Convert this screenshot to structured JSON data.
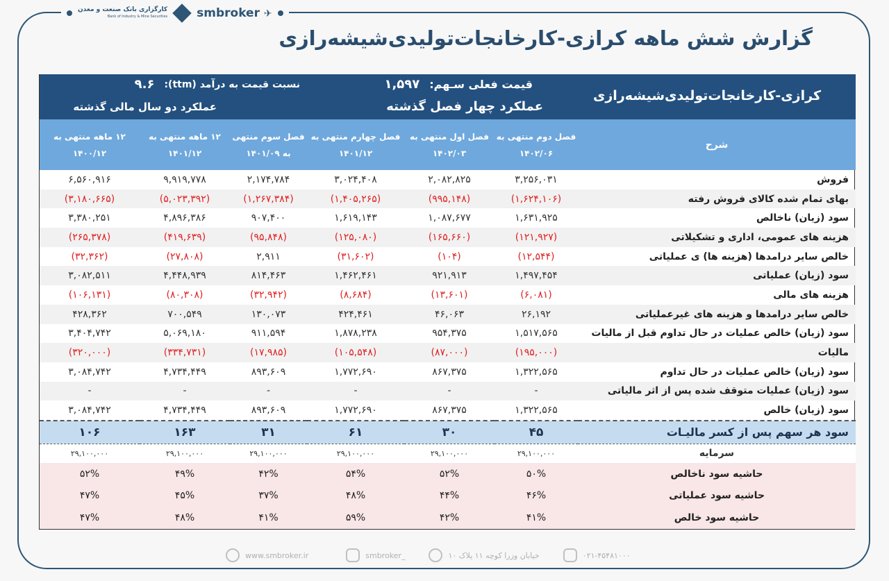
{
  "header": {
    "brand": "smbroker",
    "logo_text_fa": "کارگزاری بانک صنعت و معدن",
    "logo_text_en": "Bank of Industry & Mine Securities",
    "title": "گزارش شش ماهه کرازی-کارخانجات‌تولیدی‌شیشه‌رازی"
  },
  "summary": {
    "company": "کرازی-کارخانجات‌تولیدی‌شیشه‌رازی",
    "price_label": "قیمت فعلی سـهم:",
    "price": "۱,۵۹۷",
    "pe_label": "نسبت  قیمت به درآمد (ttm):",
    "pe": "۹.۶",
    "four_quarters": "عملکرد چهار فصل گذشته",
    "two_years": "عملکرد دو سال مالی گذشته"
  },
  "columns": {
    "desc": "شرح",
    "periods": [
      {
        "l1": "فصل دوم منتهی به",
        "l2": "۱۴۰۲/۰۶"
      },
      {
        "l1": "فصل اول منتهی به",
        "l2": "۱۴۰۲/۰۳"
      },
      {
        "l1": "فصل چهارم منتهی به",
        "l2": "۱۴۰۱/۱۲"
      },
      {
        "l1": "فصل سوم منتهی",
        "l2": "به ۱۴۰۱/۰۹"
      },
      {
        "l1": "۱۲ ماهه منتهی به",
        "l2": "۱۴۰۱/۱۲"
      },
      {
        "l1": "۱۲ ماهه منتهی به",
        "l2": "۱۴۰۰/۱۲"
      }
    ]
  },
  "rows": [
    {
      "label": "فروش",
      "values": [
        "۳,۲۵۶,۰۳۱",
        "۲,۰۸۲,۸۲۵",
        "۳,۰۲۴,۴۰۸",
        "۲,۱۷۴,۷۸۴",
        "۹,۹۱۹,۷۷۸",
        "۶,۵۶۰,۹۱۶"
      ]
    },
    {
      "label": "بهای تمام شده کالای فروش رفته",
      "values": [
        "(۱,۶۲۴,۱۰۶)",
        "(۹۹۵,۱۴۸)",
        "(۱,۴۰۵,۲۶۵)",
        "(۱,۲۶۷,۳۸۴)",
        "(۵,۰۲۳,۳۹۲)",
        "(۳,۱۸۰,۶۶۵)"
      ]
    },
    {
      "label": "سود (زیان) ناخالص",
      "values": [
        "۱,۶۳۱,۹۲۵",
        "۱,۰۸۷,۶۷۷",
        "۱,۶۱۹,۱۴۳",
        "۹۰۷,۴۰۰",
        "۴,۸۹۶,۳۸۶",
        "۳,۳۸۰,۲۵۱"
      ]
    },
    {
      "label": "هزینه های عمومی، اداری و تشکیلاتی",
      "values": [
        "(۱۲۱,۹۲۷)",
        "(۱۶۵,۶۶۰)",
        "(۱۲۵,۰۸۰)",
        "(۹۵,۸۴۸)",
        "(۴۱۹,۶۳۹)",
        "(۲۶۵,۳۷۸)"
      ]
    },
    {
      "label": "خالص سایر درامدها (هزینه ها) ی عملیاتی",
      "values": [
        "(۱۲,۵۴۴)",
        "(۱۰۴)",
        "(۳۱,۶۰۲)",
        "۲,۹۱۱",
        "(۲۷,۸۰۸)",
        "(۳۲,۳۶۲)"
      ]
    },
    {
      "label": "سود (زیان) عملیاتی",
      "values": [
        "۱,۴۹۷,۴۵۴",
        "۹۲۱,۹۱۳",
        "۱,۴۶۲,۴۶۱",
        "۸۱۴,۴۶۳",
        "۴,۴۴۸,۹۳۹",
        "۳,۰۸۲,۵۱۱"
      ]
    },
    {
      "label": "هزینه های مالی",
      "values": [
        "(۶,۰۸۱)",
        "(۱۳,۶۰۱)",
        "(۸,۶۸۴)",
        "(۳۲,۹۴۲)",
        "(۸۰,۳۰۸)",
        "(۱۰۶,۱۳۱)"
      ]
    },
    {
      "label": "خالص سایر درامدها و هزینه های غیرعملیاتی",
      "values": [
        "۲۶,۱۹۲",
        "۴۶,۰۶۳",
        "۴۲۴,۴۶۱",
        "۱۳۰,۰۷۳",
        "۷۰۰,۵۴۹",
        "۴۲۸,۳۶۲"
      ]
    },
    {
      "label": "سود (زیان) خالص عملیات در حال تداوم قبل از مالیات",
      "values": [
        "۱,۵۱۷,۵۶۵",
        "۹۵۴,۳۷۵",
        "۱,۸۷۸,۲۳۸",
        "۹۱۱,۵۹۴",
        "۵,۰۶۹,۱۸۰",
        "۳,۴۰۴,۷۴۲"
      ]
    },
    {
      "label": "مالیات",
      "values": [
        "(۱۹۵,۰۰۰)",
        "(۸۷,۰۰۰)",
        "(۱۰۵,۵۴۸)",
        "(۱۷,۹۸۵)",
        "(۳۳۴,۷۳۱)",
        "(۳۲۰,۰۰۰)"
      ]
    },
    {
      "label": "سود (زیان) خالص عملیات در حال تداوم",
      "values": [
        "۱,۳۲۲,۵۶۵",
        "۸۶۷,۳۷۵",
        "۱,۷۷۲,۶۹۰",
        "۸۹۳,۶۰۹",
        "۴,۷۳۴,۴۴۹",
        "۳,۰۸۴,۷۴۲"
      ]
    },
    {
      "label": "سود (زیان) عملیات متوقف شده پس از اثر مالیاتی",
      "values": [
        "-",
        "-",
        "-",
        "-",
        "-",
        "-"
      ]
    },
    {
      "label": "سود (زیان) خالص",
      "values": [
        "۱,۳۲۲,۵۶۵",
        "۸۶۷,۳۷۵",
        "۱,۷۷۲,۶۹۰",
        "۸۹۳,۶۰۹",
        "۴,۷۳۴,۴۴۹",
        "۳,۰۸۴,۷۴۲"
      ]
    }
  ],
  "eps": {
    "label": "سود هر سهم پس از کسر مالیـات",
    "values": [
      "۴۵",
      "۳۰",
      "۶۱",
      "۳۱",
      "۱۶۳",
      "۱۰۶"
    ]
  },
  "capital": {
    "label": "سرمایه",
    "values": [
      "۲۹,۱۰۰,۰۰۰",
      "۲۹,۱۰۰,۰۰۰",
      "۲۹,۱۰۰,۰۰۰",
      "۲۹,۱۰۰,۰۰۰",
      "۲۹,۱۰۰,۰۰۰",
      "۲۹,۱۰۰,۰۰۰"
    ]
  },
  "margins": [
    {
      "label": "حاشیه سود ناخالص",
      "values": [
        "۵۰%",
        "۵۲%",
        "۵۴%",
        "۴۲%",
        "۴۹%",
        "۵۲%"
      ]
    },
    {
      "label": "حاشیه سود عملیاتی",
      "values": [
        "۴۶%",
        "۴۴%",
        "۴۸%",
        "۳۷%",
        "۴۵%",
        "۴۷%"
      ]
    },
    {
      "label": "حاشیه سود خالص",
      "values": [
        "۴۱%",
        "۴۲%",
        "۵۹%",
        "۴۱%",
        "۴۸%",
        "۴۷%"
      ]
    }
  ],
  "footer": {
    "website": "www.smbroker.ir",
    "instagram": "smbroker_",
    "address": "خیابان وزرا کوچه ۱۱ پلاک ۱۰",
    "phone": "۰۲۱-۴۵۴۸۱۰۰۰"
  },
  "colors": {
    "dark_header": "#23507f",
    "light_header": "#6fa8dc",
    "negative": "#e02020",
    "eps_row": "#c5dcf0",
    "margin_rows": "#f9e6e6"
  }
}
